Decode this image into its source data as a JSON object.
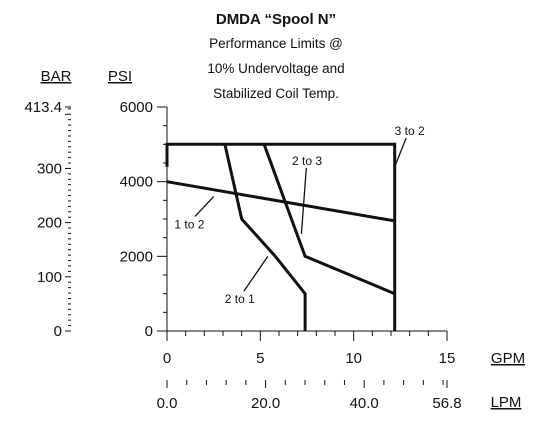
{
  "chart_data": {
    "type": "line",
    "title": "DMDA “Spool N”",
    "subtitle": [
      "Performance Limits @",
      "10% Undervoltage and",
      "Stabilized Coil Temp."
    ],
    "x_primary": {
      "unit": "GPM",
      "range": [
        0,
        15
      ],
      "ticks": [
        0,
        5,
        10,
        15
      ],
      "tick_labels": [
        "0",
        "5",
        "10",
        "15"
      ]
    },
    "x_secondary": {
      "unit": "LPM",
      "tick_labels": [
        "0.0",
        "20.0",
        "40.0",
        "56.8"
      ],
      "tick_positions_lpm": [
        0,
        20,
        40,
        56.8
      ]
    },
    "y_primary": {
      "unit": "PSI",
      "range": [
        0,
        6000
      ],
      "ticks": [
        0,
        2000,
        4000,
        6000
      ],
      "tick_labels": [
        "0",
        "2000",
        "4000",
        "6000"
      ]
    },
    "y_secondary": {
      "unit": "BAR",
      "tick_labels": [
        "0",
        "100",
        "200",
        "300",
        "413.4"
      ],
      "tick_positions_bar": [
        0,
        100,
        200,
        300,
        413.4
      ]
    },
    "series": [
      {
        "name": "1 to 2",
        "points": [
          [
            0,
            4000
          ],
          [
            12.2,
            2950
          ]
        ]
      },
      {
        "name": "2 to 1",
        "points": [
          [
            3.1,
            5000
          ],
          [
            4.0,
            3000
          ],
          [
            5.8,
            2000
          ],
          [
            7.4,
            1000
          ],
          [
            7.4,
            0
          ]
        ]
      },
      {
        "name": "2 to 3",
        "points": [
          [
            5.2,
            5000
          ],
          [
            7.4,
            2000
          ],
          [
            12.2,
            1000
          ]
        ]
      },
      {
        "name": "3 to 2",
        "points": [
          [
            0,
            4400
          ],
          [
            0,
            5000
          ],
          [
            12.2,
            5000
          ],
          [
            12.2,
            0
          ]
        ]
      }
    ],
    "annotations": [
      {
        "text": "1 to 2",
        "at": [
          1.2,
          2800
        ],
        "leader_to": [
          2.5,
          3600
        ]
      },
      {
        "text": "2 to 1",
        "at": [
          3.9,
          800
        ],
        "leader_to": [
          5.4,
          2000
        ]
      },
      {
        "text": "2 to 3",
        "at": [
          7.5,
          4500
        ],
        "leader_to": [
          7.2,
          2600
        ]
      },
      {
        "text": "3 to 2",
        "at": [
          13.0,
          5300
        ],
        "leader_to": [
          12.2,
          4400
        ]
      }
    ],
    "grid": false
  }
}
